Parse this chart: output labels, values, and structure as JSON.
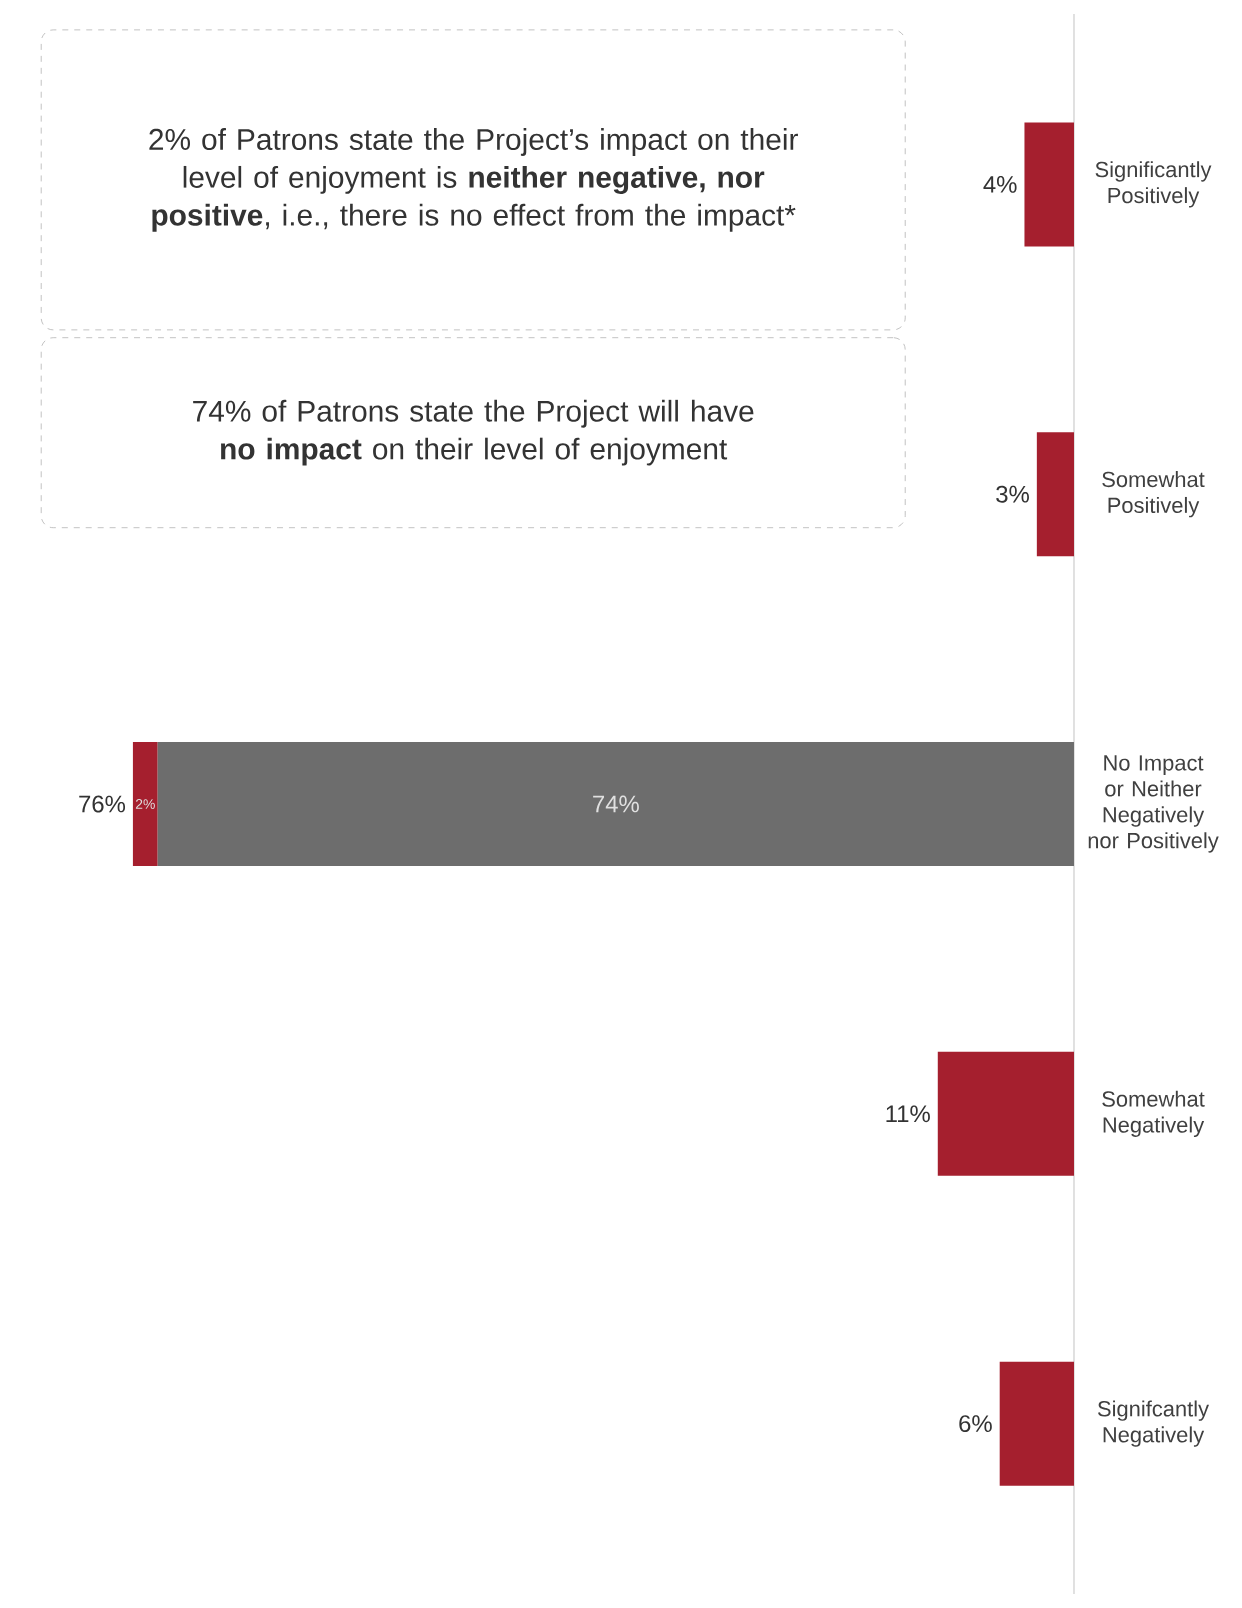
{
  "chart_data": {
    "type": "bar",
    "stacked": true,
    "orientation": "horizontal",
    "categories": [
      "Significantly Positively",
      "Somewhat Positively",
      "No Impact or Neither Negatively nor Positively",
      "Somewhat Negatively",
      "Signifcantly Negatively"
    ],
    "series": [
      {
        "color": "#6d6d6d",
        "values": [
          null,
          null,
          74,
          null,
          null
        ],
        "value_labels": [
          null,
          null,
          "74%",
          null,
          null
        ]
      },
      {
        "color": "#a51f2e",
        "values": [
          4,
          3,
          2,
          11,
          6
        ],
        "value_labels": [
          null,
          null,
          "2%",
          null,
          null
        ]
      }
    ],
    "totals": [
      "4%",
      "3%",
      "76%",
      "11%",
      "6%"
    ],
    "tick_labels": "y",
    "annotations": [
      "2% of Patrons state the Project’s impact on their level of enjoyment is **neither negative, nor positive**, i.e., there is no effect from the impact*",
      "74% of Patrons state the Project will have **no impact** on their level of enjoyment"
    ]
  }
}
